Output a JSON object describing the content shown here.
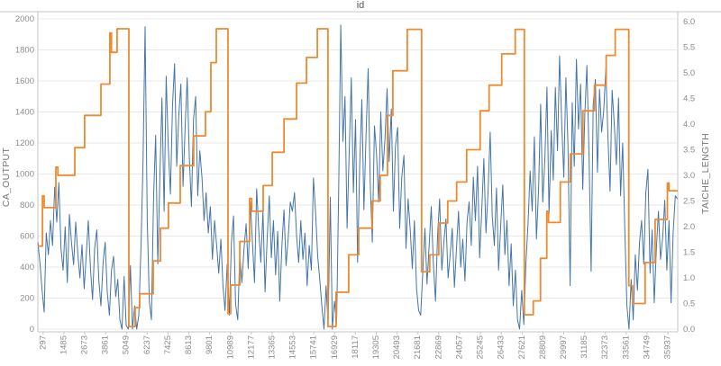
{
  "title": "id",
  "colors": {
    "ca_output_line": "#4575a7",
    "taiche_length_line": "#ee8a2f",
    "grid": "#e9e9e9",
    "axis_line": "#c6c6c6",
    "tick_text": "#8c8c8c",
    "title_text": "#595959",
    "background": "#ffffff"
  },
  "chart_data": {
    "type": "line",
    "title": "id",
    "legend": "none",
    "grid": "horizontal (left-axis ticks)",
    "x": {
      "min": 0,
      "max": 36500,
      "tick_labels": [
        297,
        1485,
        2673,
        3861,
        5049,
        6237,
        7425,
        8613,
        9801,
        10989,
        12177,
        13365,
        14553,
        15741,
        16929,
        18117,
        19305,
        20493,
        21681,
        22869,
        24057,
        25245,
        26433,
        27621,
        28809,
        29997,
        31185,
        32373,
        33561,
        34749,
        35937
      ],
      "tick_label_rotation": -90
    },
    "left_axis": {
      "label": "CA_OUTPUT",
      "min": 0,
      "max": 2000,
      "ticks": [
        0,
        200,
        400,
        600,
        800,
        1000,
        1200,
        1400,
        1600,
        1800,
        2000
      ]
    },
    "right_axis": {
      "label": "TAICHE_LENGTH",
      "min": 0,
      "max": 6,
      "ticks": [
        "0.0",
        "0.5",
        "1.0",
        "1.5",
        "2.0",
        "2.5",
        "3.0",
        "3.5",
        "4.0",
        "4.5",
        "5.0",
        "5.5",
        "6.0"
      ]
    },
    "series": [
      {
        "name": "CA_OUTPUT",
        "axis": "left",
        "color": "#4575a7",
        "style": "line",
        "x_start": 0,
        "x_step": 120,
        "values": [
          560,
          430,
          250,
          110,
          620,
          480,
          700,
          540,
          916,
          690,
          945,
          520,
          380,
          660,
          300,
          740,
          560,
          415,
          690,
          480,
          330,
          545,
          260,
          480,
          700,
          390,
          190,
          520,
          640,
          310,
          150,
          430,
          560,
          240,
          90,
          380,
          470,
          210,
          320,
          60,
          0,
          340,
          25,
          0,
          410,
          0,
          150,
          0,
          90,
          520,
          1080,
          1950,
          700,
          180,
          60,
          850,
          1250,
          420,
          980,
          1490,
          760,
          1630,
          1180,
          870,
          1440,
          1710,
          1050,
          1380,
          1580,
          920,
          1300,
          1620,
          1100,
          790,
          1350,
          1500,
          860,
          1150,
          980,
          700,
          880,
          620,
          790,
          450,
          700,
          540,
          360,
          580,
          280,
          120,
          420,
          90,
          560,
          730,
          160,
          60,
          480,
          300,
          520,
          680,
          390,
          820,
          560,
          300,
          905,
          640,
          430,
          760,
          240,
          580,
          860,
          460,
          700,
          350,
          630,
          180,
          540,
          770,
          410,
          590,
          820,
          760,
          880,
          600,
          430,
          700,
          450,
          620,
          280,
          540,
          380,
          975,
          760,
          470,
          320,
          150,
          0,
          280,
          30,
          850,
          0,
          180,
          40,
          900,
          1960,
          1210,
          1500,
          650,
          1150,
          1620,
          880,
          1350,
          430,
          1050,
          1480,
          770,
          1240,
          1680,
          940,
          560,
          1310,
          1130,
          820,
          1400,
          1020,
          1230,
          1550,
          1080,
          1420,
          760,
          1180,
          1300,
          650,
          980,
          1120,
          520,
          840,
          640,
          390,
          700,
          260,
          120,
          90,
          380,
          650,
          290,
          540,
          790,
          430,
          180,
          600,
          840,
          380,
          560,
          710,
          330,
          480,
          650,
          270,
          520,
          760,
          400,
          580,
          310,
          690,
          820,
          540,
          980,
          700,
          1050,
          460,
          760,
          1100,
          620,
          880,
          1270,
          730,
          540,
          910,
          380,
          660,
          930,
          480,
          700,
          280,
          550,
          150,
          380,
          60,
          0,
          250,
          30,
          420,
          680,
          1020,
          760,
          1240,
          580,
          900,
          1450,
          820,
          1100,
          1560,
          740,
          1280,
          960,
          1558,
          1150,
          1760,
          1340,
          980,
          1620,
          1190,
          280,
          1460,
          1050,
          1740,
          1290,
          1580,
          900,
          1380,
          1700,
          1120,
          372,
          1450,
          1610,
          1010,
          1546,
          1270,
          1412,
          1680,
          1230,
          890,
          1540,
          1320,
          1060,
          1490,
          860,
          1200,
          640,
          150,
          0,
          320,
          60,
          480,
          250,
          560,
          700,
          420,
          880,
          1030,
          360,
          640,
          170,
          520,
          760,
          450,
          590,
          830,
          380,
          700,
          170,
          620,
          860,
          840
        ]
      },
      {
        "name": "TAICHE_LENGTH",
        "axis": "right",
        "color": "#ee8a2f",
        "style": "step-after",
        "points": [
          [
            0,
            1.62
          ],
          [
            260,
            2.6
          ],
          [
            360,
            2.37
          ],
          [
            1030,
            3.16
          ],
          [
            1140,
            3.0
          ],
          [
            2110,
            3.54
          ],
          [
            2670,
            4.17
          ],
          [
            3600,
            4.78
          ],
          [
            4110,
            5.78
          ],
          [
            4200,
            5.4
          ],
          [
            4520,
            5.86
          ],
          [
            5190,
            0.05
          ],
          [
            5550,
            0.42
          ],
          [
            5810,
            0.69
          ],
          [
            6580,
            1.33
          ],
          [
            6990,
            1.97
          ],
          [
            7450,
            2.46
          ],
          [
            8120,
            3.19
          ],
          [
            8890,
            3.77
          ],
          [
            9560,
            4.24
          ],
          [
            9870,
            5.2
          ],
          [
            10180,
            5.86
          ],
          [
            10845,
            0.3
          ],
          [
            11000,
            0.86
          ],
          [
            11520,
            1.71
          ],
          [
            12080,
            2.55
          ],
          [
            12200,
            2.3
          ],
          [
            12850,
            2.8
          ],
          [
            13370,
            3.45
          ],
          [
            14040,
            4.1
          ],
          [
            14760,
            4.8
          ],
          [
            15325,
            5.3
          ],
          [
            15940,
            5.86
          ],
          [
            16550,
            0.05
          ],
          [
            17010,
            0.72
          ],
          [
            17730,
            1.45
          ],
          [
            18300,
            1.97
          ],
          [
            19070,
            2.5
          ],
          [
            19530,
            3.0
          ],
          [
            19940,
            4.17
          ],
          [
            20250,
            5.04
          ],
          [
            21070,
            5.85
          ],
          [
            21890,
            1.12
          ],
          [
            22350,
            1.45
          ],
          [
            22870,
            2.07
          ],
          [
            23380,
            2.5
          ],
          [
            23890,
            2.87
          ],
          [
            24460,
            3.5
          ],
          [
            25230,
            4.26
          ],
          [
            25740,
            4.76
          ],
          [
            26460,
            5.37
          ],
          [
            27230,
            5.85
          ],
          [
            27750,
            0.28
          ],
          [
            28260,
            0.55
          ],
          [
            28670,
            1.38
          ],
          [
            29030,
            2.3
          ],
          [
            29130,
            2.08
          ],
          [
            29800,
            2.87
          ],
          [
            30370,
            3.42
          ],
          [
            31090,
            4.26
          ],
          [
            31750,
            4.76
          ],
          [
            32420,
            5.34
          ],
          [
            32930,
            5.85
          ],
          [
            33710,
            0.85
          ],
          [
            33920,
            0.5
          ],
          [
            34640,
            1.3
          ],
          [
            35210,
            2.14
          ],
          [
            35910,
            2.85
          ],
          [
            36000,
            2.7
          ],
          [
            36500,
            2.7
          ]
        ]
      }
    ]
  }
}
